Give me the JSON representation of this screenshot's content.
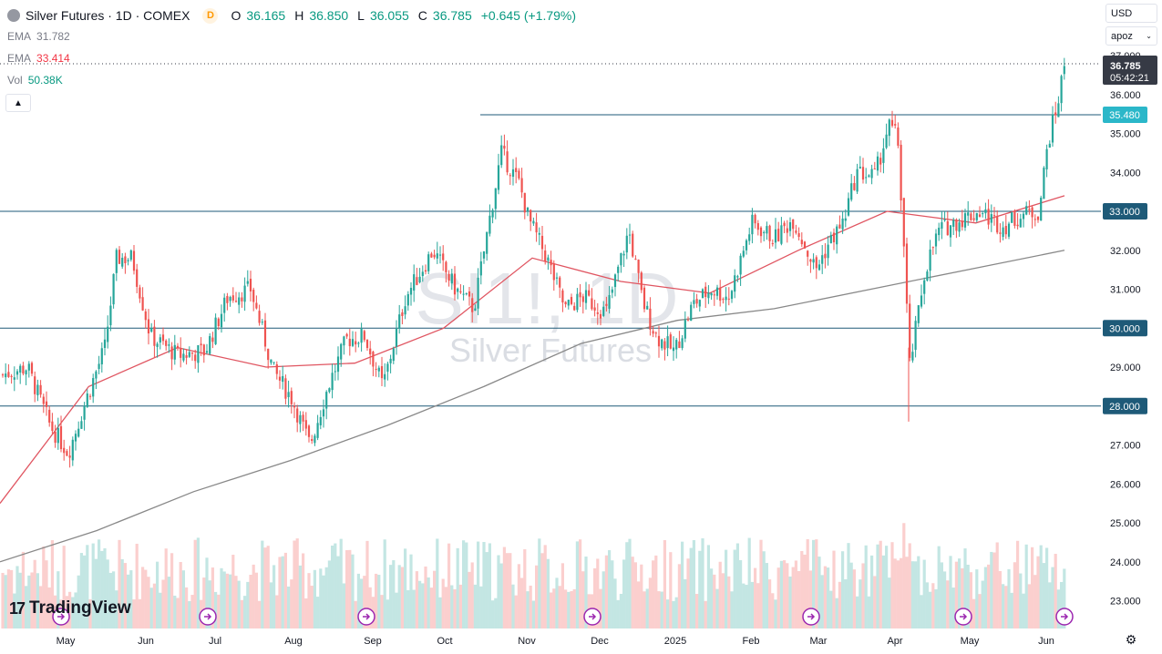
{
  "header": {
    "symbol_title": "Silver Futures · 1D · COMEX",
    "delay_badge": "D",
    "open_label": "O",
    "open": "36.165",
    "high_label": "H",
    "high": "36.850",
    "low_label": "L",
    "low": "36.055",
    "close_label": "C",
    "close": "36.785",
    "change": "+0.645 (+1.79%)"
  },
  "indicators": [
    {
      "name": "EMA",
      "value": "31.782",
      "color": "#787b86"
    },
    {
      "name": "EMA",
      "value": "33.414",
      "color": "#f23645"
    },
    {
      "name": "Vol",
      "value": "50.38K",
      "color": "#089981"
    }
  ],
  "controls": {
    "currency": "USD",
    "unit": "apoz",
    "collapse_icon": "chevron-up-icon"
  },
  "watermark": {
    "symbol": "SI1!, 1D",
    "description": "Silver Futures"
  },
  "branding": {
    "logo_text": "TradingView"
  },
  "colors": {
    "up": "#26a69a",
    "down": "#ef5350",
    "ema_fast": "#e05561",
    "ema_slow": "#888888",
    "hline": "#1e5a78",
    "last_price_bg": "#363a45",
    "level_bg": "#2bb7c9",
    "event_icon": "#9c27b0"
  },
  "chart_data": {
    "type": "candlestick",
    "ylim": [
      22.5,
      37.5
    ],
    "y_ticks": [
      "37.000",
      "36.000",
      "35.000",
      "34.000",
      "33.000",
      "32.000",
      "31.000",
      "30.000",
      "29.000",
      "28.000",
      "27.000",
      "26.000",
      "25.000",
      "24.000",
      "23.000"
    ],
    "x_ticks": [
      "May",
      "Jun",
      "Jul",
      "Aug",
      "Sep",
      "Oct",
      "Nov",
      "Dec",
      "2025",
      "Feb",
      "Mar",
      "Apr",
      "May",
      "Jun"
    ],
    "horizontal_levels": [
      {
        "value": 33.0,
        "label": "33.000"
      },
      {
        "value": 30.0,
        "label": "30.000"
      },
      {
        "value": 28.0,
        "label": "28.000"
      },
      {
        "value": 35.48,
        "label": "35.480"
      }
    ],
    "last_price": {
      "value": 36.785,
      "label": "36.785",
      "countdown": "05:42:21"
    },
    "ema_slow_approx": [
      24.0,
      24.8,
      25.8,
      26.6,
      27.5,
      28.5,
      29.6,
      30.2,
      30.5,
      31.0,
      31.5,
      32.0
    ],
    "ema_fast_approx": [
      25.5,
      28.5,
      29.5,
      29.0,
      29.1,
      30.0,
      31.8,
      31.2,
      30.9,
      32.0,
      33.0,
      32.7,
      33.4
    ]
  }
}
